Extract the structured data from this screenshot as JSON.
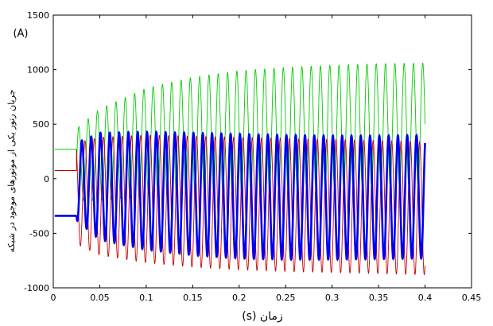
{
  "chart_data": {
    "type": "line",
    "title": "",
    "xlabel": "(s) زمان",
    "ylabel": "جریان رتور یکی از موتورهای موجود در شبکه",
    "yunit": "(A)",
    "xlim": [
      0,
      0.45
    ],
    "ylim": [
      -1000,
      1500
    ],
    "xticks": [
      "0",
      "0.05",
      "0.1",
      "0.15",
      "0.2",
      "0.25",
      "0.3",
      "0.35",
      "0.4",
      "0.45"
    ],
    "yticks": [
      "-1000",
      "-500",
      "0",
      "500",
      "1000",
      "1500"
    ],
    "grid": false,
    "legend": "none",
    "switch_time": 0.025,
    "end_time": 0.4,
    "oscillation_frequency_hz": 100,
    "series": [
      {
        "color": "#00cc00",
        "pre_switch_value": 270,
        "envelope_t": [
          0.025,
          0.05,
          0.1,
          0.15,
          0.2,
          0.25,
          0.3,
          0.35,
          0.4
        ],
        "max": [
          460,
          640,
          830,
          930,
          990,
          1020,
          1040,
          1055,
          1060
        ],
        "min": [
          -200,
          -200,
          -160,
          -140,
          -120,
          -100,
          -80,
          -70,
          -60
        ]
      },
      {
        "color": "#cc0000",
        "pre_switch_value": 75,
        "envelope_t": [
          0.025,
          0.05,
          0.1,
          0.15,
          0.2,
          0.25,
          0.3,
          0.35,
          0.4
        ],
        "max": [
          330,
          380,
          400,
          390,
          380,
          370,
          360,
          350,
          340
        ],
        "min": [
          -600,
          -700,
          -770,
          -810,
          -835,
          -850,
          -860,
          -870,
          -880
        ]
      },
      {
        "color": "#0000ee",
        "pre_switch_value": -340,
        "envelope_t": [
          0.025,
          0.05,
          0.1,
          0.15,
          0.2,
          0.25,
          0.3,
          0.35,
          0.4
        ],
        "max": [
          330,
          420,
          430,
          420,
          410,
          400,
          395,
          395,
          400
        ],
        "min": [
          -380,
          -560,
          -650,
          -700,
          -730,
          -740,
          -740,
          -735,
          -730
        ]
      }
    ]
  },
  "colors": {
    "background": "#ffffff",
    "axes": "#000000"
  }
}
